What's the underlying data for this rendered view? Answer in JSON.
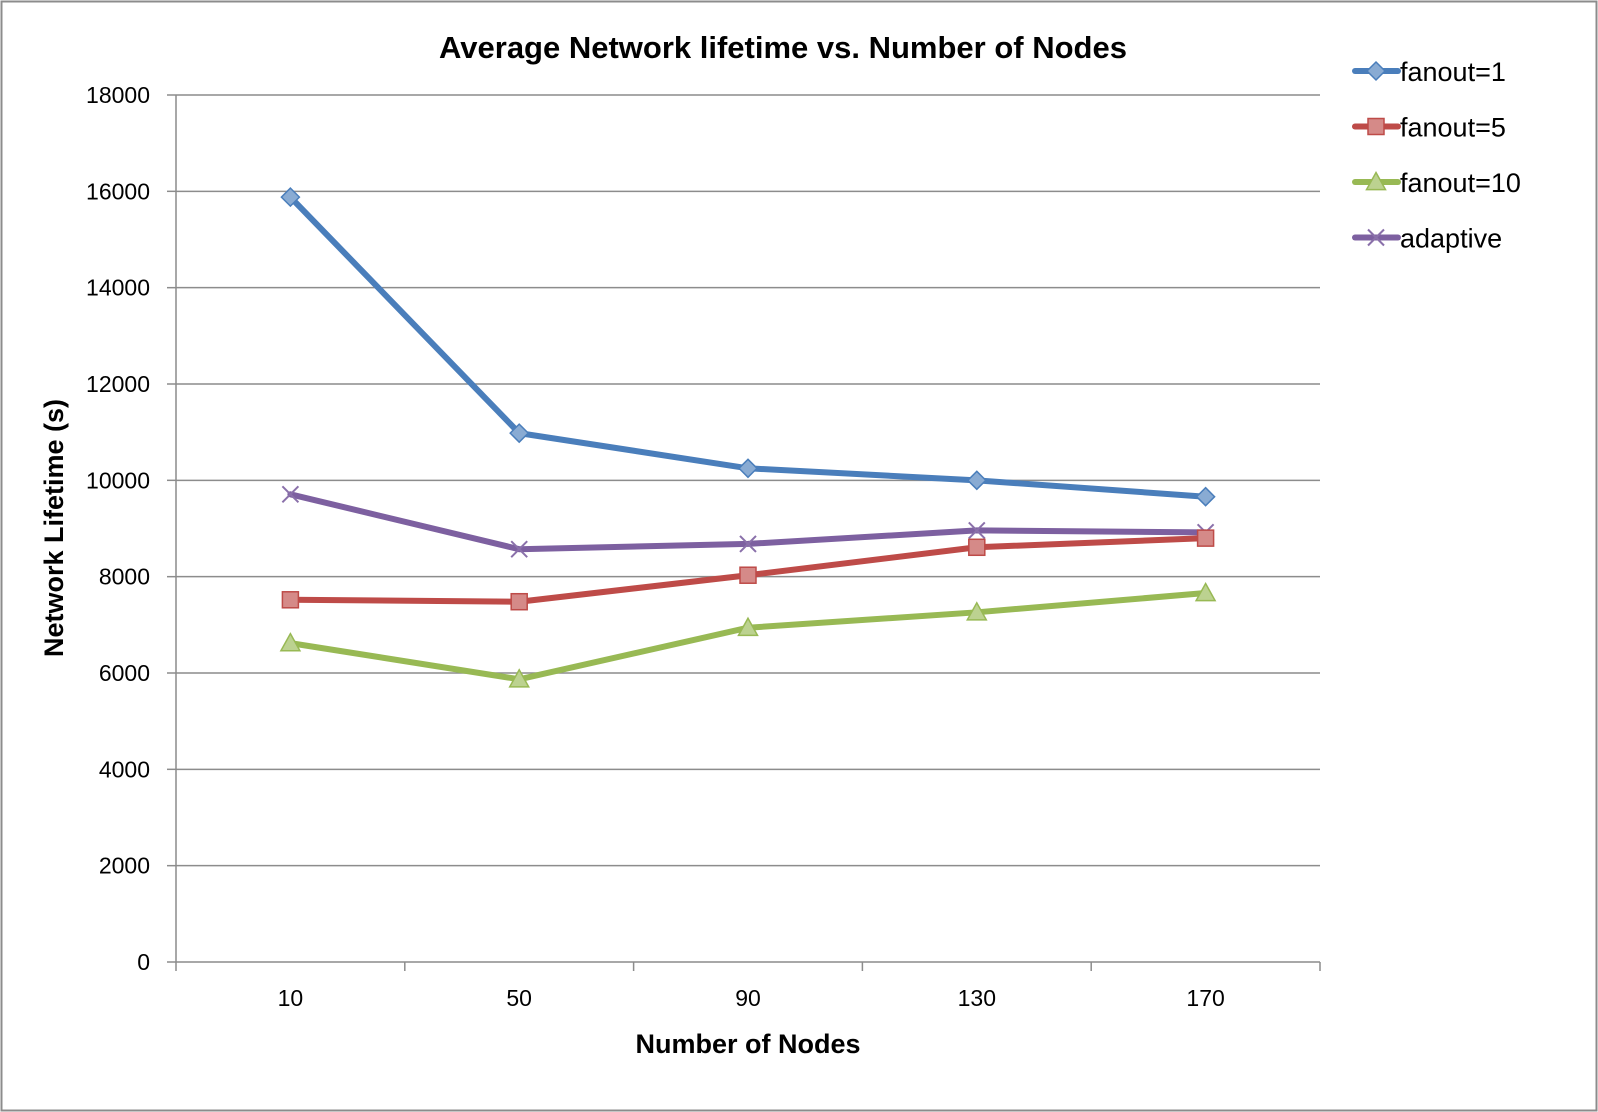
{
  "chart_data": {
    "type": "line",
    "title": "Average Network lifetime vs. Number of Nodes",
    "xlabel": "Number of Nodes",
    "ylabel": "Network Lifetime (s)",
    "categories": [
      "10",
      "50",
      "90",
      "130",
      "170"
    ],
    "ylim": [
      0,
      18000
    ],
    "yticks": [
      0,
      2000,
      4000,
      6000,
      8000,
      10000,
      12000,
      14000,
      16000,
      18000
    ],
    "grid": "horizontal",
    "legend_position": "right",
    "series": [
      {
        "name": "fanout=1",
        "values": [
          15880,
          10980,
          10250,
          10000,
          9660
        ],
        "color": "#4a7ebb",
        "marker": "diamond"
      },
      {
        "name": "fanout=5",
        "values": [
          7520,
          7480,
          8030,
          8610,
          8800
        ],
        "color": "#be4b48",
        "marker": "square"
      },
      {
        "name": "fanout=10",
        "values": [
          6620,
          5870,
          6940,
          7260,
          7660
        ],
        "color": "#98b954",
        "marker": "triangle"
      },
      {
        "name": "adaptive",
        "values": [
          9710,
          8570,
          8680,
          8960,
          8920
        ],
        "color": "#7d60a0",
        "marker": "x"
      }
    ]
  }
}
